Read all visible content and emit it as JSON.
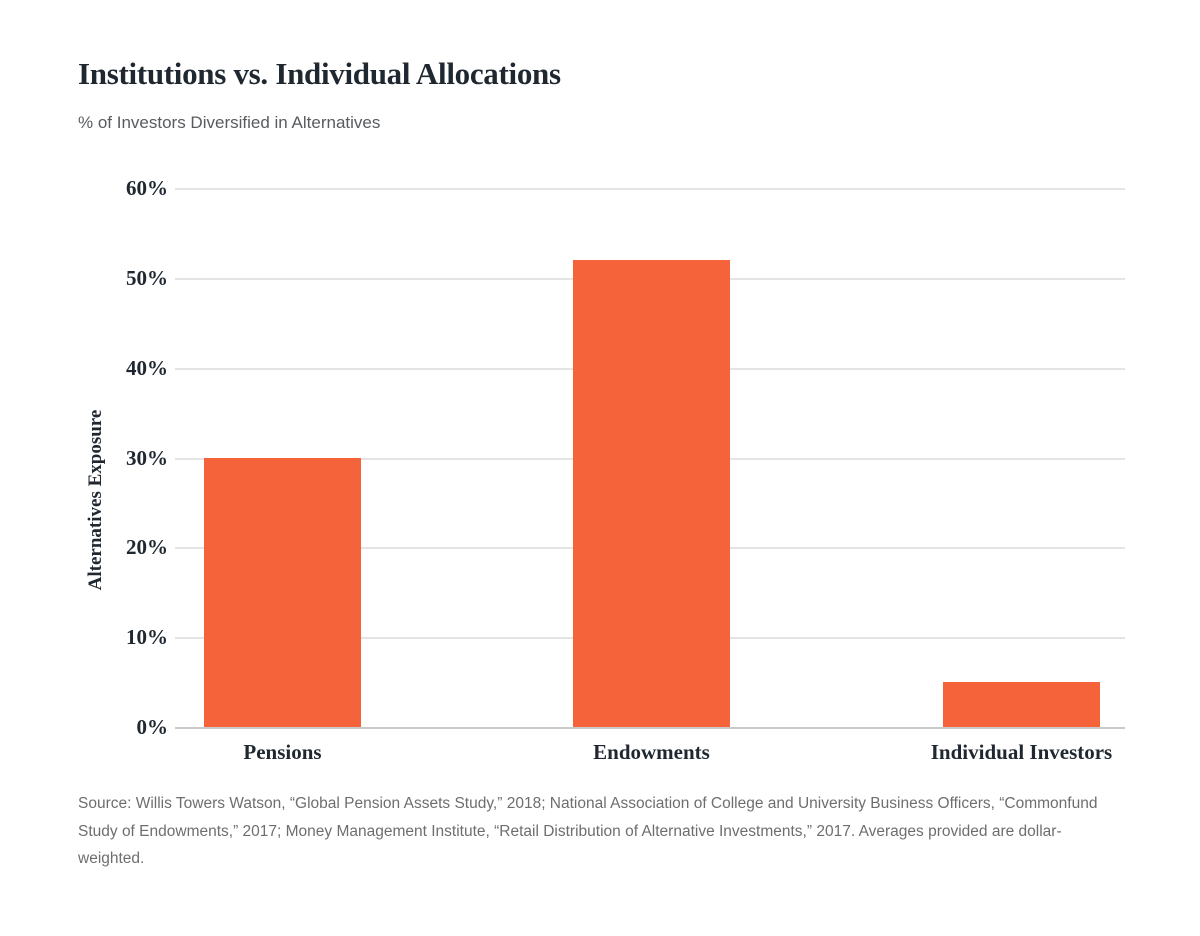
{
  "header": {
    "title": "Institutions vs. Individual Allocations",
    "subtitle": "% of Investors Diversified in Alternatives"
  },
  "chart_data": {
    "type": "bar",
    "title": "Institutions vs. Individual Allocations",
    "subtitle": "% of Investors Diversified in Alternatives",
    "categories": [
      "Pensions",
      "Endowments",
      "Individual Investors"
    ],
    "values": [
      30,
      52,
      5
    ],
    "xlabel": "",
    "ylabel": "Alternatives Exposure",
    "ylim": [
      0,
      60
    ],
    "ytick_step": 10,
    "ytick_labels": [
      "0%",
      "10%",
      "20%",
      "30%",
      "40%",
      "50%",
      "60%"
    ],
    "grid": "horizontal",
    "legend_position": "none",
    "bar_color": "#F5633A",
    "gridline_color": "#e4e4e4",
    "text_color": "#1f2730"
  },
  "footer": {
    "source": "Source: Willis Towers Watson, “Global Pension Assets Study,” 2018; National Association of College and University Business Officers, “Commonfund Study of Endowments,” 2017; Money Management Institute, “Retail Distribution of Alternative Investments,” 2017. Averages provided are dollar-weighted."
  }
}
